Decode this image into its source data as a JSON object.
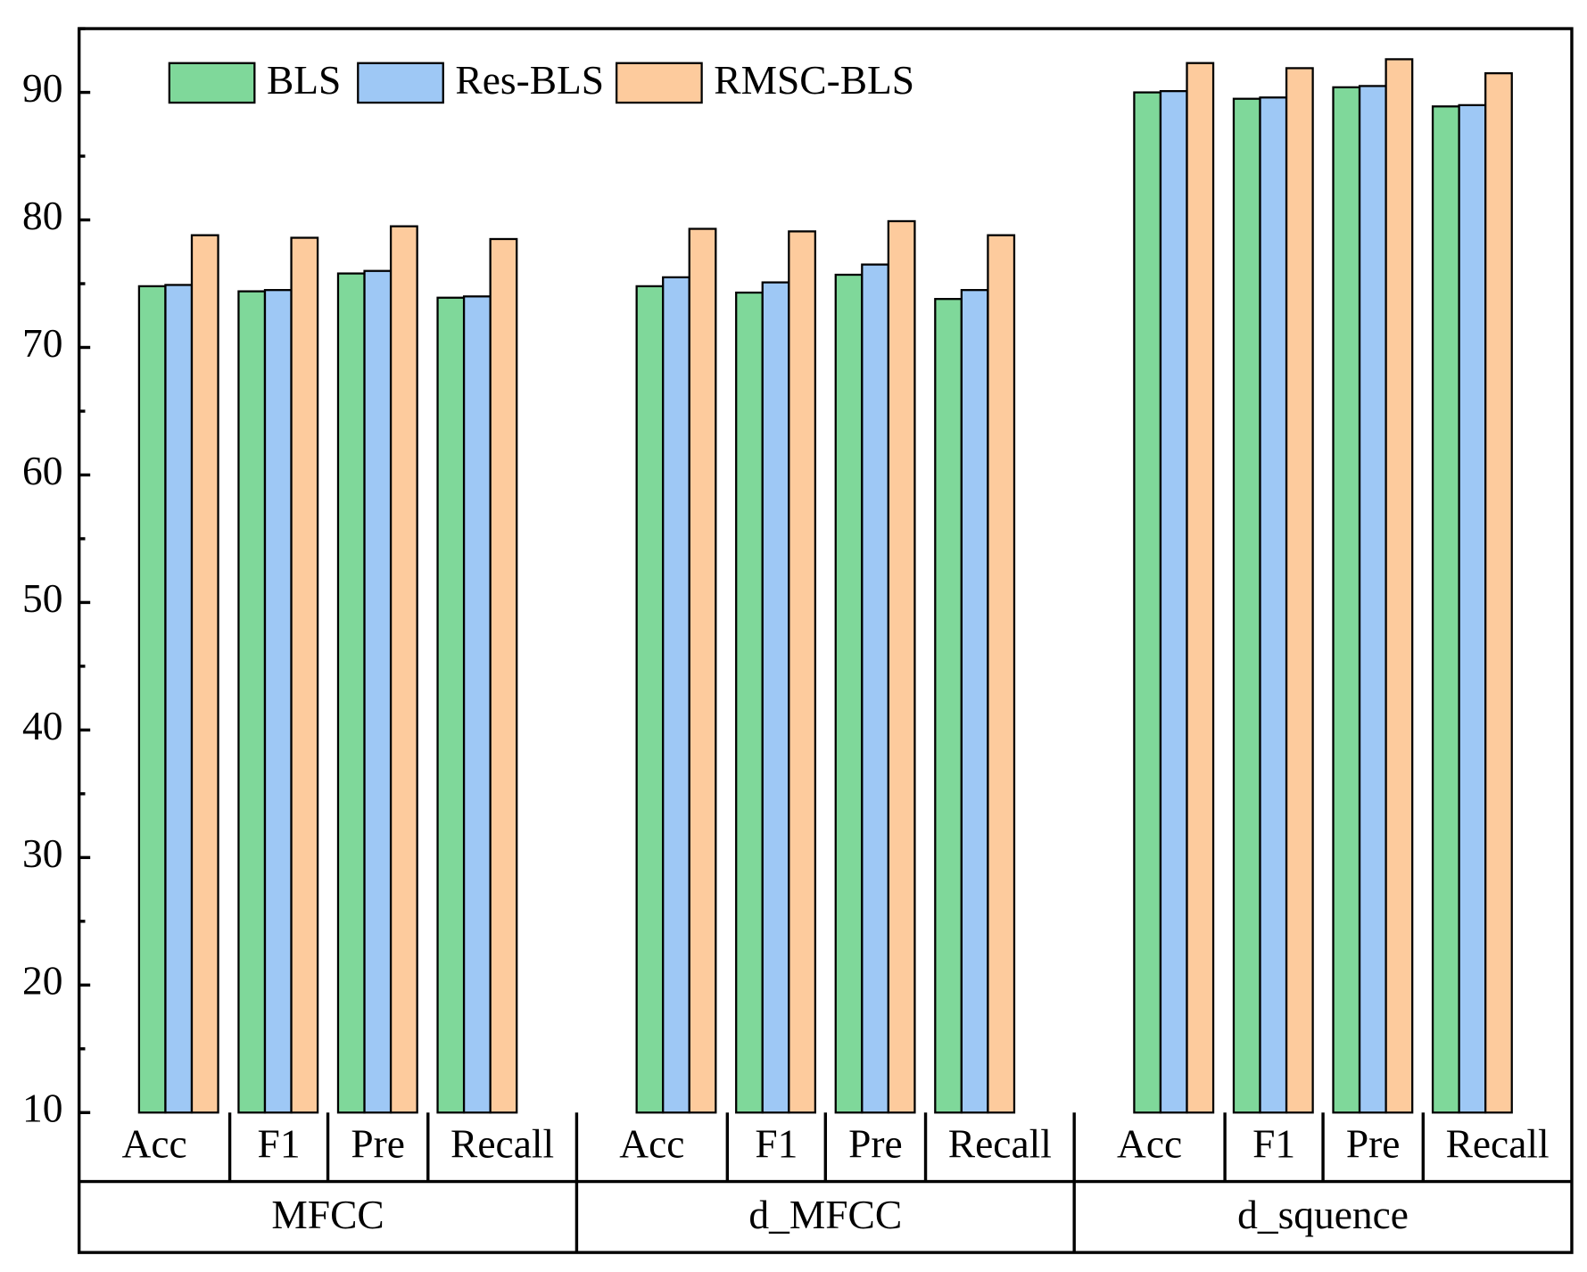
{
  "chart_data": {
    "type": "bar",
    "groups": [
      "MFCC",
      "d_MFCC",
      "d_squence"
    ],
    "categories": [
      "Acc",
      "F1",
      "Pre",
      "Recall",
      "Acc",
      "F1",
      "Pre",
      "Recall",
      "Acc",
      "F1",
      "Pre",
      "Recall"
    ],
    "series": [
      {
        "name": "BLS",
        "color": "#7fd89a",
        "values": [
          74.8,
          74.4,
          75.8,
          73.9,
          74.8,
          74.3,
          75.7,
          73.8,
          90.0,
          89.5,
          90.4,
          88.9
        ]
      },
      {
        "name": "Res-BLS",
        "color": "#9ec8f5",
        "values": [
          74.9,
          74.5,
          76.0,
          74.0,
          75.5,
          75.1,
          76.5,
          74.5,
          90.1,
          89.6,
          90.5,
          89.0
        ]
      },
      {
        "name": "RMSC-BLS",
        "color": "#fdcb9d",
        "values": [
          78.8,
          78.6,
          79.5,
          78.5,
          79.3,
          79.1,
          79.9,
          78.8,
          92.3,
          91.9,
          92.6,
          91.5
        ]
      }
    ],
    "ylim": [
      10,
      95
    ],
    "yticks": [
      10,
      20,
      30,
      40,
      50,
      60,
      70,
      80,
      90
    ],
    "yminorticks": [
      15,
      25,
      35,
      45,
      55,
      65,
      75,
      85,
      95
    ],
    "legend": "upper-left"
  }
}
